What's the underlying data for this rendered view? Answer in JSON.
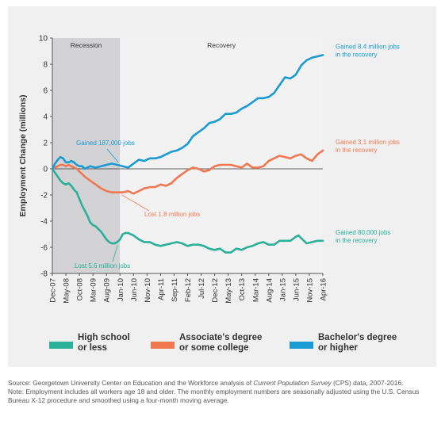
{
  "chart_data": {
    "type": "line",
    "ylabel": "Employment Change (millions)",
    "ylim": [
      -8,
      10
    ],
    "yticks": [
      "10",
      "8",
      "6",
      "4",
      "2",
      "0",
      "-2",
      "-4",
      "-6",
      "-8"
    ],
    "x_tick_labels": [
      "Dec-07",
      "May-08",
      "Oct-08",
      "Mar-09",
      "Aug-09",
      "Jan-10",
      "Jun-10",
      "Nov-10",
      "Apr-11",
      "Sep-11",
      "Feb-12",
      "Jul-12",
      "Dec-12",
      "May-13",
      "Oct-13",
      "Mar-14",
      "Aug-14",
      "Jan-15",
      "Jun-15",
      "Nov-15",
      "Apr-16"
    ],
    "x_start": "2007-12",
    "x_end": "2016-04",
    "periods": [
      {
        "label": "Recession",
        "start": "2007-12",
        "end": "2010-01",
        "color": "#d3d3d5"
      },
      {
        "label": "Recovery",
        "start": "2010-01",
        "end": "2016-04",
        "color": "#f2f2f2"
      }
    ],
    "series": [
      {
        "name": "High school or less",
        "color": "#2bb09a",
        "points": [
          [
            "2007-12",
            0
          ],
          [
            "2008-01",
            -0.3
          ],
          [
            "2008-02",
            -0.6
          ],
          [
            "2008-03",
            -0.9
          ],
          [
            "2008-04",
            -1.1
          ],
          [
            "2008-05",
            -1.2
          ],
          [
            "2008-06",
            -1.1
          ],
          [
            "2008-07",
            -1.3
          ],
          [
            "2008-08",
            -1.6
          ],
          [
            "2008-09",
            -1.8
          ],
          [
            "2008-10",
            -2.3
          ],
          [
            "2008-11",
            -2.8
          ],
          [
            "2008-12",
            -3.2
          ],
          [
            "2009-01",
            -3.6
          ],
          [
            "2009-02",
            -4.1
          ],
          [
            "2009-03",
            -4.3
          ],
          [
            "2009-04",
            -4.4
          ],
          [
            "2009-05",
            -4.6
          ],
          [
            "2009-06",
            -4.8
          ],
          [
            "2009-07",
            -5.1
          ],
          [
            "2009-08",
            -5.4
          ],
          [
            "2009-09",
            -5.6
          ],
          [
            "2009-10",
            -5.7
          ],
          [
            "2009-11",
            -5.7
          ],
          [
            "2009-12",
            -5.6
          ],
          [
            "2010-01",
            -5.4
          ],
          [
            "2010-02",
            -5.0
          ],
          [
            "2010-03",
            -4.9
          ],
          [
            "2010-04",
            -4.9
          ],
          [
            "2010-06",
            -5.1
          ],
          [
            "2010-08",
            -5.4
          ],
          [
            "2010-10",
            -5.6
          ],
          [
            "2010-12",
            -5.6
          ],
          [
            "2011-02",
            -5.8
          ],
          [
            "2011-04",
            -5.9
          ],
          [
            "2011-06",
            -5.8
          ],
          [
            "2011-08",
            -5.7
          ],
          [
            "2011-10",
            -5.6
          ],
          [
            "2011-12",
            -5.7
          ],
          [
            "2012-02",
            -5.9
          ],
          [
            "2012-04",
            -5.8
          ],
          [
            "2012-06",
            -5.8
          ],
          [
            "2012-08",
            -5.9
          ],
          [
            "2012-10",
            -6.1
          ],
          [
            "2012-12",
            -6.2
          ],
          [
            "2013-02",
            -6.1
          ],
          [
            "2013-04",
            -6.4
          ],
          [
            "2013-06",
            -6.4
          ],
          [
            "2013-08",
            -6.1
          ],
          [
            "2013-10",
            -6.2
          ],
          [
            "2013-12",
            -6.0
          ],
          [
            "2014-02",
            -5.9
          ],
          [
            "2014-04",
            -5.7
          ],
          [
            "2014-06",
            -5.6
          ],
          [
            "2014-08",
            -5.8
          ],
          [
            "2014-10",
            -5.8
          ],
          [
            "2014-12",
            -5.5
          ],
          [
            "2015-02",
            -5.5
          ],
          [
            "2015-04",
            -5.5
          ],
          [
            "2015-06",
            -5.2
          ],
          [
            "2015-07",
            -5.1
          ],
          [
            "2015-08",
            -5.3
          ],
          [
            "2015-10",
            -5.7
          ],
          [
            "2015-12",
            -5.6
          ],
          [
            "2016-02",
            -5.5
          ],
          [
            "2016-04",
            -5.5
          ]
        ]
      },
      {
        "name": "Associate's degree or some college",
        "color": "#f07850",
        "points": [
          [
            "2007-12",
            0
          ],
          [
            "2008-01",
            0.1
          ],
          [
            "2008-02",
            0.2
          ],
          [
            "2008-03",
            0.3
          ],
          [
            "2008-04",
            0.3
          ],
          [
            "2008-05",
            0.2
          ],
          [
            "2008-06",
            0.3
          ],
          [
            "2008-07",
            0.2
          ],
          [
            "2008-08",
            0.1
          ],
          [
            "2008-09",
            0.0
          ],
          [
            "2008-10",
            -0.2
          ],
          [
            "2008-11",
            -0.4
          ],
          [
            "2008-12",
            -0.6
          ],
          [
            "2009-02",
            -0.9
          ],
          [
            "2009-04",
            -1.2
          ],
          [
            "2009-06",
            -1.5
          ],
          [
            "2009-08",
            -1.7
          ],
          [
            "2009-10",
            -1.8
          ],
          [
            "2009-12",
            -1.8
          ],
          [
            "2010-02",
            -1.8
          ],
          [
            "2010-04",
            -1.7
          ],
          [
            "2010-06",
            -1.9
          ],
          [
            "2010-08",
            -1.7
          ],
          [
            "2010-10",
            -1.5
          ],
          [
            "2010-12",
            -1.4
          ],
          [
            "2011-02",
            -1.4
          ],
          [
            "2011-04",
            -1.2
          ],
          [
            "2011-06",
            -1.3
          ],
          [
            "2011-08",
            -1.1
          ],
          [
            "2011-10",
            -0.7
          ],
          [
            "2011-12",
            -0.4
          ],
          [
            "2012-02",
            -0.1
          ],
          [
            "2012-04",
            0.1
          ],
          [
            "2012-06",
            0.0
          ],
          [
            "2012-08",
            -0.2
          ],
          [
            "2012-10",
            -0.1
          ],
          [
            "2012-12",
            0.2
          ],
          [
            "2013-02",
            0.3
          ],
          [
            "2013-04",
            0.3
          ],
          [
            "2013-06",
            0.3
          ],
          [
            "2013-08",
            0.2
          ],
          [
            "2013-10",
            0.1
          ],
          [
            "2013-12",
            0.4
          ],
          [
            "2014-02",
            0.1
          ],
          [
            "2014-04",
            0.1
          ],
          [
            "2014-06",
            0.2
          ],
          [
            "2014-08",
            0.6
          ],
          [
            "2014-10",
            0.8
          ],
          [
            "2014-12",
            1.0
          ],
          [
            "2015-02",
            0.9
          ],
          [
            "2015-04",
            0.8
          ],
          [
            "2015-06",
            1.0
          ],
          [
            "2015-08",
            1.1
          ],
          [
            "2015-10",
            0.8
          ],
          [
            "2015-12",
            0.6
          ],
          [
            "2016-02",
            1.1
          ],
          [
            "2016-04",
            1.4
          ]
        ]
      },
      {
        "name": "Bachelor's degree or higher",
        "color": "#1a9bd3",
        "points": [
          [
            "2007-12",
            0
          ],
          [
            "2008-01",
            0.4
          ],
          [
            "2008-02",
            0.7
          ],
          [
            "2008-03",
            0.9
          ],
          [
            "2008-04",
            0.8
          ],
          [
            "2008-05",
            0.5
          ],
          [
            "2008-06",
            0.5
          ],
          [
            "2008-07",
            0.6
          ],
          [
            "2008-08",
            0.5
          ],
          [
            "2008-09",
            0.3
          ],
          [
            "2008-10",
            0.2
          ],
          [
            "2008-11",
            0.2
          ],
          [
            "2008-12",
            0.0
          ],
          [
            "2009-02",
            0.2
          ],
          [
            "2009-04",
            0.1
          ],
          [
            "2009-06",
            0.2
          ],
          [
            "2009-08",
            0.3
          ],
          [
            "2009-10",
            0.4
          ],
          [
            "2009-12",
            0.3
          ],
          [
            "2010-02",
            0.2
          ],
          [
            "2010-04",
            0.1
          ],
          [
            "2010-06",
            0.4
          ],
          [
            "2010-08",
            0.7
          ],
          [
            "2010-10",
            0.6
          ],
          [
            "2010-12",
            0.8
          ],
          [
            "2011-02",
            0.8
          ],
          [
            "2011-04",
            0.9
          ],
          [
            "2011-06",
            1.1
          ],
          [
            "2011-08",
            1.3
          ],
          [
            "2011-10",
            1.4
          ],
          [
            "2011-12",
            1.6
          ],
          [
            "2012-02",
            1.9
          ],
          [
            "2012-04",
            2.5
          ],
          [
            "2012-06",
            2.8
          ],
          [
            "2012-08",
            3.1
          ],
          [
            "2012-10",
            3.5
          ],
          [
            "2012-12",
            3.6
          ],
          [
            "2013-02",
            3.8
          ],
          [
            "2013-04",
            4.2
          ],
          [
            "2013-06",
            4.2
          ],
          [
            "2013-08",
            4.3
          ],
          [
            "2013-10",
            4.6
          ],
          [
            "2013-12",
            4.8
          ],
          [
            "2014-02",
            5.1
          ],
          [
            "2014-04",
            5.4
          ],
          [
            "2014-06",
            5.4
          ],
          [
            "2014-08",
            5.5
          ],
          [
            "2014-10",
            5.8
          ],
          [
            "2014-12",
            6.4
          ],
          [
            "2015-02",
            7.0
          ],
          [
            "2015-04",
            6.9
          ],
          [
            "2015-06",
            7.2
          ],
          [
            "2015-08",
            7.9
          ],
          [
            "2015-10",
            8.3
          ],
          [
            "2015-12",
            8.5
          ],
          [
            "2016-02",
            8.6
          ],
          [
            "2016-04",
            8.7
          ]
        ]
      }
    ],
    "annotations": [
      {
        "text": "Gained 187,000 jobs",
        "color": "#1a9bd3"
      },
      {
        "text": "Lost 1.8 million jobs",
        "color": "#f07850"
      },
      {
        "text": "Lost 5.6 million jobs",
        "color": "#2bb09a"
      }
    ],
    "end_labels": [
      {
        "lines": [
          "Gained 8.4 million jobs",
          "in the recovery"
        ],
        "color": "#1a9bd3"
      },
      {
        "lines": [
          "Gained 3.1 million jobs",
          "in the recovery"
        ],
        "color": "#f07850"
      },
      {
        "lines": [
          "Gained 80,000 jobs",
          "in the recovery"
        ],
        "color": "#2bb09a"
      }
    ],
    "legend": [
      {
        "lines": [
          "High school",
          "or less"
        ],
        "color": "#2bb09a"
      },
      {
        "lines": [
          "Associate's degree",
          "or some college"
        ],
        "color": "#f07850"
      },
      {
        "lines": [
          "Bachelor's degree",
          "or higher"
        ],
        "color": "#1a9bd3"
      }
    ]
  },
  "source": {
    "prefix": "Source: Georgetown University Center on Education and the Workforce analysis of ",
    "italic": "Current Population Survey",
    "suffix": " (CPS) data, 2007-2016.",
    "note": "Note: Employment includes all workers age 18 and older. The monthly employment numbers are seasonally adjusted using the U.S. Census Bureau X-12 procedure and smoothed using a four-month moving average."
  }
}
